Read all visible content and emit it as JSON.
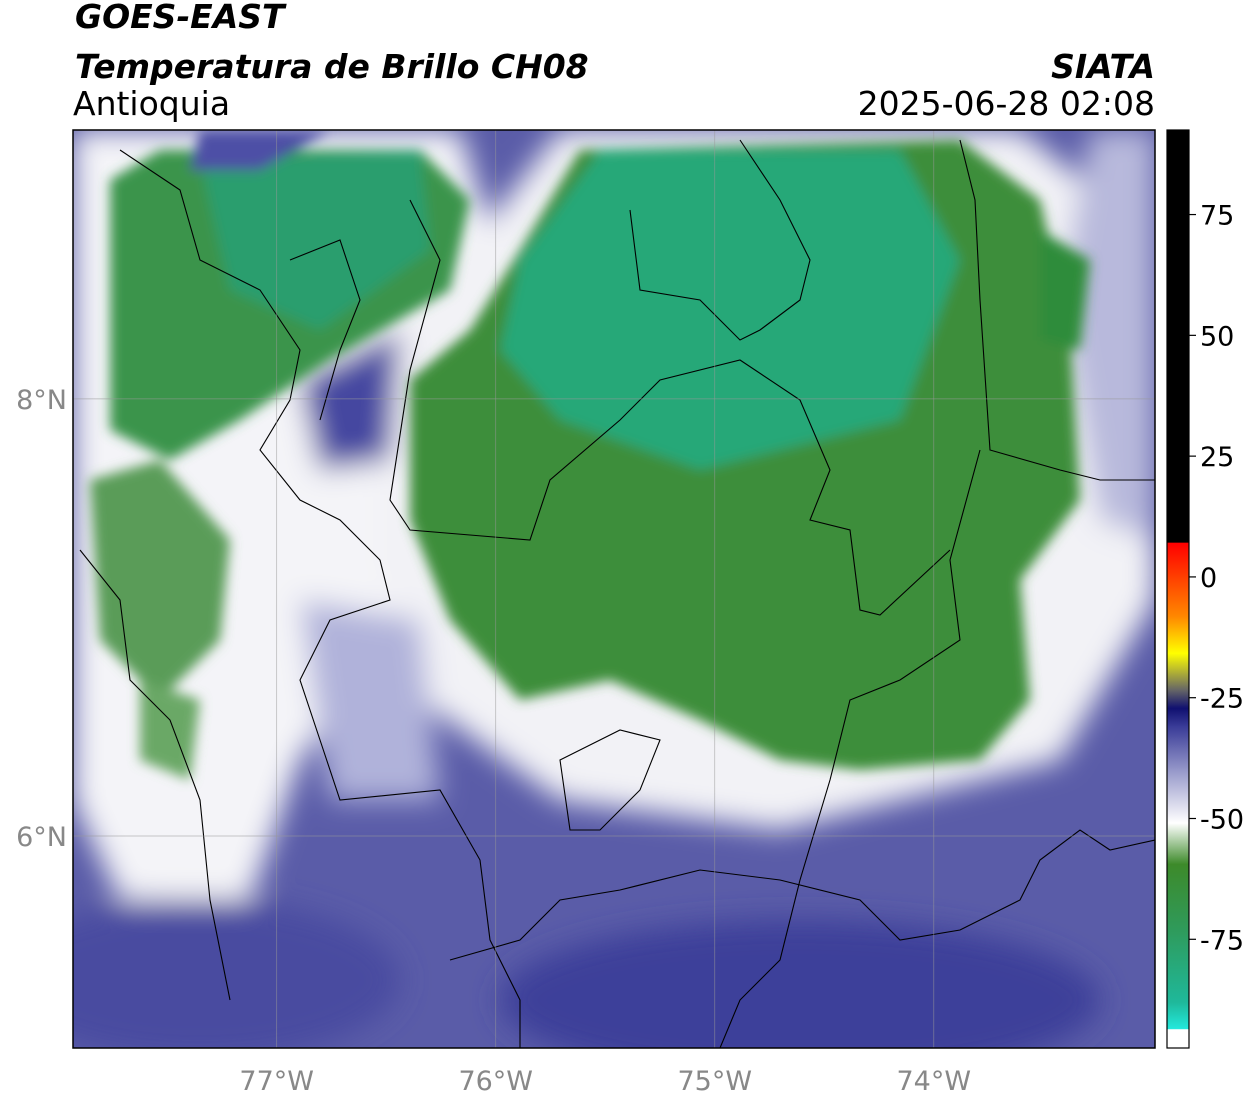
{
  "header": {
    "title": "GOES-EAST",
    "subtitle": "Temperatura de Brillo CH08",
    "region": "Antioquia",
    "source": "SIATA",
    "datetime": "2025-06-28 02:08"
  },
  "map": {
    "xlim": [
      -77.93,
      -72.99
    ],
    "ylim": [
      5.03,
      9.23
    ],
    "xticks": [
      {
        "value": -77,
        "label": "77°W"
      },
      {
        "value": -76,
        "label": "76°W"
      },
      {
        "value": -75,
        "label": "75°W"
      },
      {
        "value": -74,
        "label": "74°W"
      }
    ],
    "yticks": [
      {
        "value": 8,
        "label": "8°N"
      },
      {
        "value": 6,
        "label": "6°N"
      }
    ]
  },
  "colorbar": {
    "lim": [
      -97.5,
      92.5
    ],
    "ticks": [
      75,
      50,
      25,
      0,
      -25,
      -50,
      -75
    ]
  }
}
